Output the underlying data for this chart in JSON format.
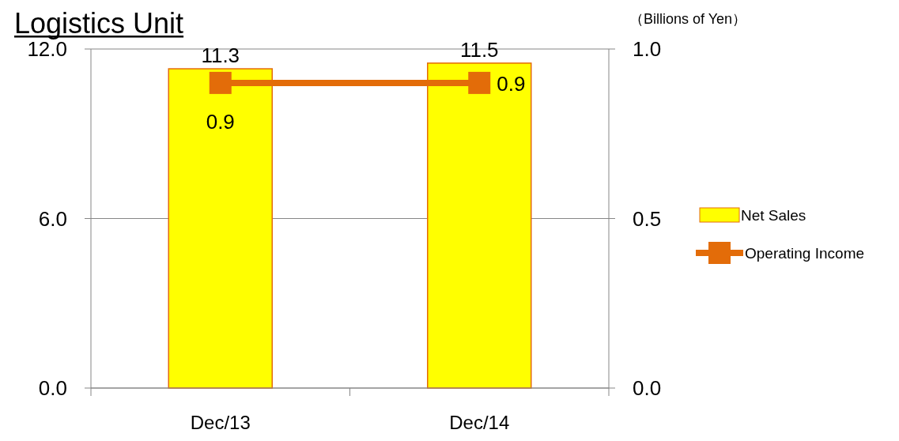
{
  "chart_data": {
    "type": "bar",
    "title": "Logistics Unit",
    "annotations": [
      "（Billions of Yen）"
    ],
    "categories": [
      "Dec/13",
      "Dec/14"
    ],
    "series": [
      {
        "name": "Net Sales",
        "color": "#ffff00",
        "values": [
          11.3,
          11.5
        ]
      },
      {
        "name": "Operating Income",
        "type": "line",
        "color": "#e36c09",
        "axis": "y2",
        "values": [
          0.9,
          0.9
        ]
      }
    ],
    "ylim": [
      0,
      12
    ],
    "yticks": [
      {
        "value": 0,
        "label": "0.0"
      },
      {
        "value": 6,
        "label": "6.0"
      },
      {
        "value": 12,
        "label": "12.0"
      }
    ],
    "y2lim": [
      0,
      1
    ],
    "y2ticks": [
      {
        "value": 0,
        "label": "0.0"
      },
      {
        "value": 0.5,
        "label": "0.5"
      },
      {
        "value": 1,
        "label": "1.0"
      }
    ],
    "grid": "y",
    "legend": "right",
    "marker": "square",
    "data_labels": true
  }
}
